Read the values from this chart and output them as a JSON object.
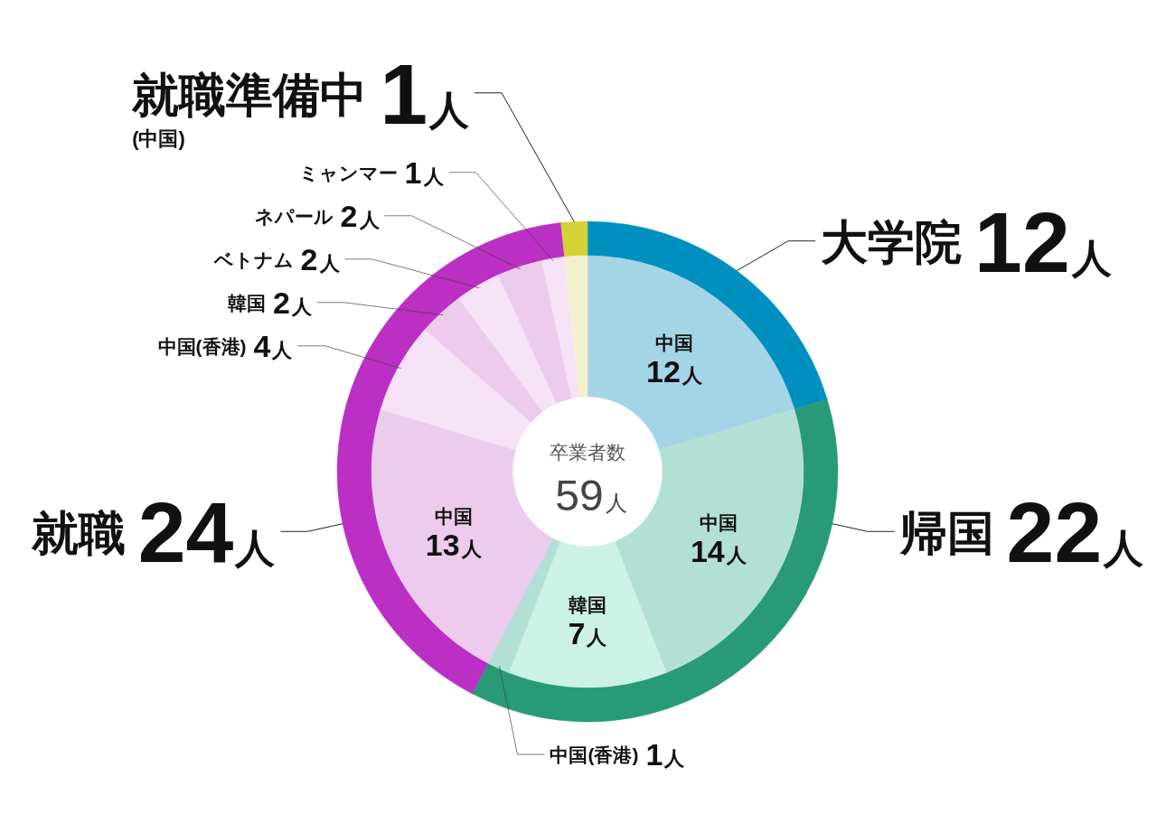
{
  "chart_data": [
    {
      "type": "donut",
      "categories": [
        "大学院",
        "帰国",
        "就職",
        "就職準備中"
      ],
      "values": [
        12,
        22,
        24,
        1
      ],
      "colors": [
        "#0090c0",
        "#289a78",
        "#bb2fc4",
        "#d4d234"
      ],
      "value_labels": [
        "12人",
        "22人",
        "24人",
        "1人"
      ]
    },
    {
      "type": "donut",
      "categories": [
        "中国",
        "中国",
        "韓国",
        "中国(香港)",
        "中国",
        "中国(香港)",
        "韓国",
        "ベトナム",
        "ネパール",
        "ミャンマー",
        "(中国)"
      ],
      "values": [
        12,
        14,
        7,
        1,
        13,
        4,
        2,
        2,
        2,
        1,
        1
      ],
      "colors": [
        "#a4d5e6",
        "#b3e0d5",
        "#ccf2e6",
        "#b3e0d5",
        "#eccbec",
        "#f6e2f6",
        "#eccbec",
        "#f6e2f6",
        "#eccbec",
        "#f6e2f6",
        "#f5f0cc"
      ],
      "value_labels": [
        "12人",
        "14人",
        "7人",
        "1人",
        "13人",
        "4人",
        "2人",
        "2人",
        "2人",
        "1人",
        null
      ],
      "annotations": [
        "卒業者数",
        "59人"
      ]
    }
  ]
}
